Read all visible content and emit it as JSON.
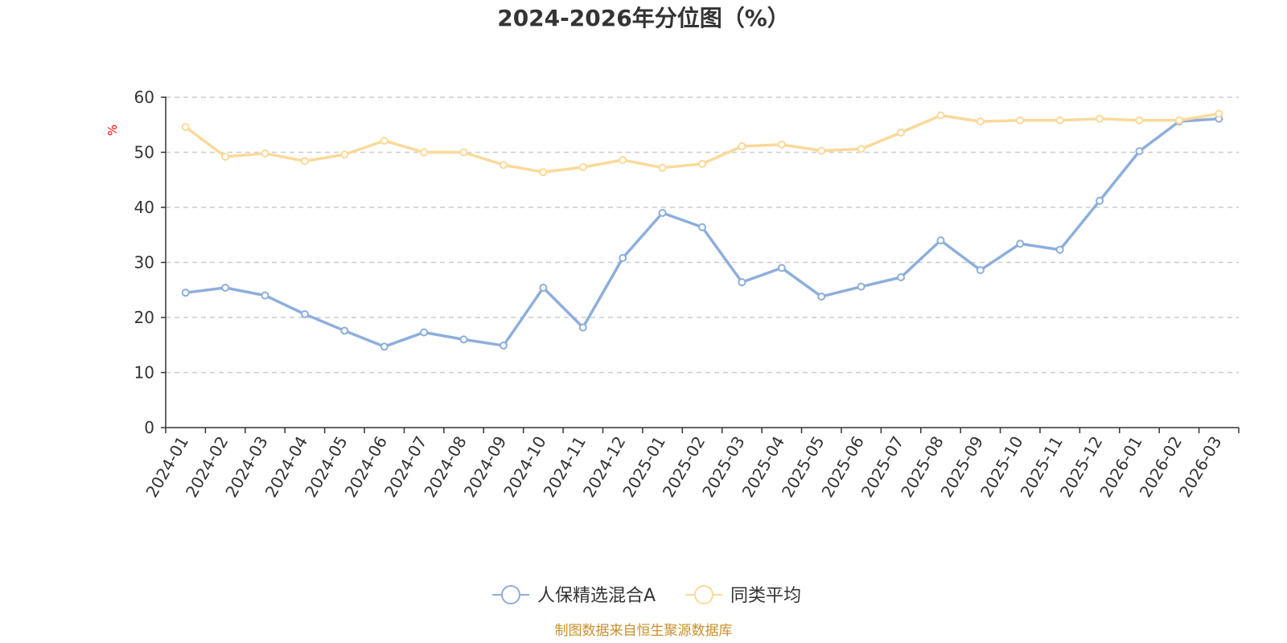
{
  "chart_data": {
    "type": "line",
    "title": "2024-2026年分位图（%）",
    "ylabel": "%",
    "xlabel": "",
    "ylim": [
      0,
      60
    ],
    "yticks": [
      0,
      10,
      20,
      30,
      40,
      50,
      60
    ],
    "grid": true,
    "categories": [
      "2024-01",
      "2024-02",
      "2024-03",
      "2024-04",
      "2024-05",
      "2024-06",
      "2024-07",
      "2024-08",
      "2024-09",
      "2024-10",
      "2024-11",
      "2024-12",
      "2025-01",
      "2025-02",
      "2025-03",
      "2025-04",
      "2025-05",
      "2025-06",
      "2025-07",
      "2025-08",
      "2025-09",
      "2025-10",
      "2025-11",
      "2025-12",
      "2026-01",
      "2026-02",
      "2026-03"
    ],
    "series": [
      {
        "name": "人保精选混合A",
        "color": "#8eaedb",
        "values": [
          24.5,
          25.4,
          24.0,
          20.6,
          17.6,
          14.7,
          17.3,
          16.0,
          14.9,
          25.4,
          18.2,
          30.8,
          39.0,
          36.4,
          26.4,
          29.0,
          23.8,
          25.6,
          27.3,
          34.0,
          28.6,
          33.4,
          32.3,
          41.2,
          50.2,
          55.6,
          56.1
        ]
      },
      {
        "name": "同类平均",
        "color": "#fbd999",
        "values": [
          54.6,
          49.2,
          49.8,
          48.4,
          49.6,
          52.1,
          50.0,
          50.0,
          47.7,
          46.4,
          47.3,
          48.6,
          47.2,
          47.9,
          51.1,
          51.4,
          50.3,
          50.6,
          53.6,
          56.7,
          55.6,
          55.8,
          55.8,
          56.1,
          55.8,
          55.8,
          57.0
        ]
      }
    ],
    "legend_position": "bottom"
  },
  "source_text": "制图数据来自恒生聚源数据库"
}
